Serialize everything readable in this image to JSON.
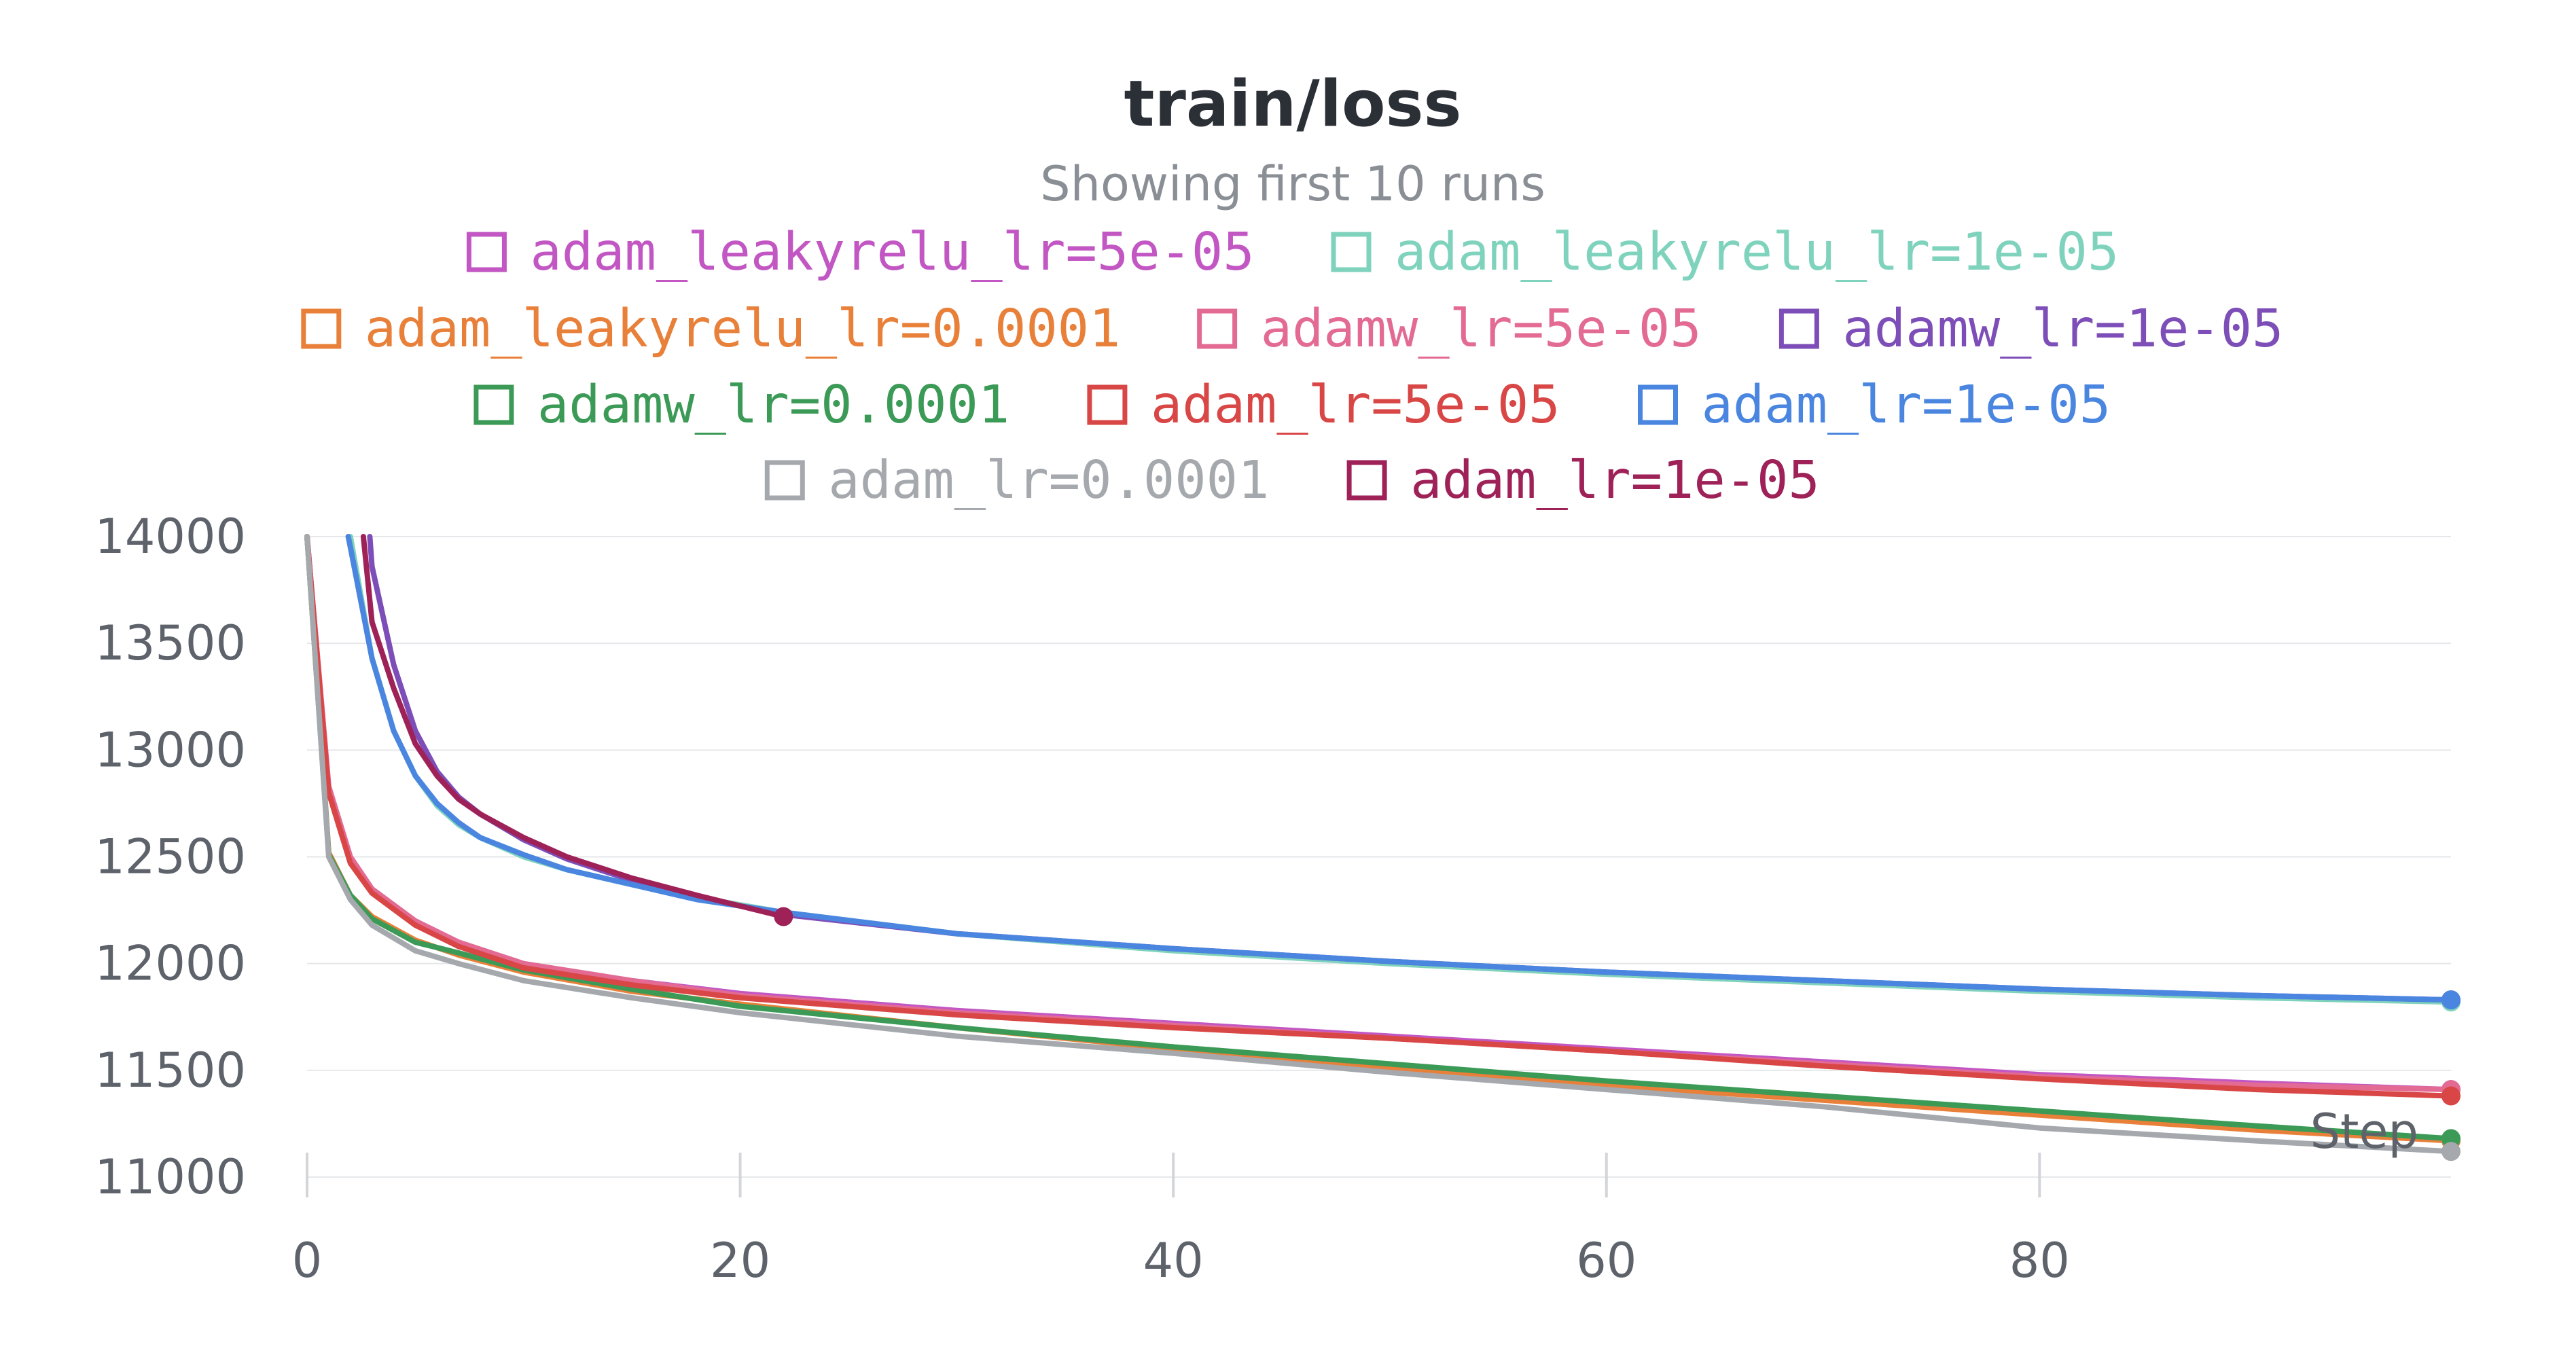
{
  "chart_data": {
    "type": "line",
    "title": "train/loss",
    "subtitle": "Showing first 10 runs",
    "xlabel": "Step",
    "ylabel": "",
    "xlim": [
      0,
      99
    ],
    "ylim": [
      11000,
      14000
    ],
    "x_ticks": [
      "0",
      "20",
      "40",
      "60",
      "80"
    ],
    "y_ticks": [
      "11000",
      "11500",
      "12000",
      "12500",
      "13000",
      "13500",
      "14000"
    ],
    "grid": true,
    "legend_position": "top",
    "series": [
      {
        "name": "adam_leakyrelu_lr=5e-05",
        "color": "#c257c4",
        "x": [
          0,
          1,
          2,
          3,
          5,
          7,
          10,
          15,
          20,
          30,
          40,
          50,
          60,
          70,
          80,
          90,
          99
        ],
        "y": [
          14000,
          12820,
          12490,
          12340,
          12190,
          12090,
          11990,
          11920,
          11860,
          11780,
          11720,
          11660,
          11600,
          11540,
          11480,
          11440,
          11410
        ]
      },
      {
        "name": "adam_leakyrelu_lr=1e-05",
        "color": "#7fd3bd",
        "x": [
          2,
          3,
          4,
          5,
          6,
          7,
          8,
          10,
          12,
          15,
          18,
          22,
          30,
          40,
          50,
          60,
          70,
          80,
          90,
          99
        ],
        "y": [
          14000,
          13430,
          13090,
          12880,
          12740,
          12650,
          12590,
          12500,
          12440,
          12370,
          12310,
          12240,
          12140,
          12060,
          12000,
          11950,
          11910,
          11870,
          11840,
          11820
        ]
      },
      {
        "name": "adam_leakyrelu_lr=0.0001",
        "color": "#e8803a",
        "x": [
          0,
          1,
          2,
          3,
          5,
          7,
          10,
          15,
          20,
          30,
          40,
          50,
          60,
          70,
          80,
          90,
          99
        ],
        "y": [
          14000,
          12520,
          12320,
          12220,
          12110,
          12040,
          11960,
          11870,
          11810,
          11700,
          11600,
          11510,
          11430,
          11360,
          11290,
          11220,
          11170
        ]
      },
      {
        "name": "adamw_lr=5e-05",
        "color": "#e36b93",
        "x": [
          0,
          1,
          2,
          3,
          5,
          7,
          10,
          15,
          20,
          30,
          40,
          50,
          60,
          70,
          80,
          90,
          99
        ],
        "y": [
          14000,
          12830,
          12500,
          12350,
          12200,
          12100,
          12000,
          11920,
          11850,
          11770,
          11710,
          11650,
          11590,
          11530,
          11470,
          11430,
          11410
        ]
      },
      {
        "name": "adamw_lr=1e-05",
        "color": "#7d4eb8",
        "x": [
          2.9,
          3,
          4,
          5,
          6,
          7,
          8,
          10,
          12,
          15,
          18,
          22,
          30,
          40,
          50,
          60,
          70,
          80,
          90,
          99
        ],
        "y": [
          14000,
          13860,
          13400,
          13090,
          12900,
          12780,
          12700,
          12580,
          12490,
          12390,
          12310,
          12230,
          12140,
          12070,
          12010,
          11960,
          11920,
          11880,
          11850,
          11830
        ]
      },
      {
        "name": "adamw_lr=0.0001",
        "color": "#3c9a57",
        "x": [
          0,
          1,
          2,
          3,
          5,
          7,
          10,
          15,
          20,
          30,
          40,
          50,
          60,
          70,
          80,
          90,
          99
        ],
        "y": [
          14000,
          12510,
          12320,
          12210,
          12100,
          12050,
          11970,
          11880,
          11800,
          11700,
          11610,
          11530,
          11450,
          11380,
          11310,
          11240,
          11180
        ]
      },
      {
        "name": "adam_lr=5e-05",
        "color": "#d94646",
        "x": [
          0,
          1,
          2,
          3,
          5,
          7,
          10,
          15,
          20,
          30,
          40,
          50,
          60,
          70,
          80,
          90,
          99
        ],
        "y": [
          14000,
          12800,
          12470,
          12330,
          12180,
          12080,
          11980,
          11900,
          11840,
          11760,
          11700,
          11650,
          11590,
          11520,
          11460,
          11410,
          11380
        ]
      },
      {
        "name": "adam_lr=1e-05",
        "color": "#4a86e0",
        "x": [
          1.9,
          2,
          3,
          4,
          5,
          6,
          7,
          8,
          10,
          12,
          15,
          18,
          22,
          30,
          40,
          50,
          60,
          70,
          80,
          90,
          99
        ],
        "y": [
          14000,
          13950,
          13430,
          13090,
          12880,
          12750,
          12660,
          12590,
          12510,
          12440,
          12370,
          12300,
          12240,
          12140,
          12070,
          12010,
          11960,
          11920,
          11880,
          11850,
          11830
        ]
      },
      {
        "name": "adam_lr=0.0001",
        "color": "#a5a9ad",
        "x": [
          0,
          1,
          2,
          3,
          5,
          7,
          10,
          15,
          20,
          30,
          40,
          50,
          60,
          70,
          80,
          90,
          99
        ],
        "y": [
          14000,
          12500,
          12300,
          12180,
          12060,
          12000,
          11920,
          11840,
          11770,
          11660,
          11580,
          11490,
          11410,
          11330,
          11230,
          11170,
          11120
        ]
      },
      {
        "name": "adam_lr=1e-05",
        "color": "#9e2258",
        "x": [
          2.6,
          3,
          4,
          5,
          6,
          7,
          8,
          10,
          12,
          15,
          18,
          22
        ],
        "y": [
          14000,
          13600,
          13290,
          13030,
          12880,
          12770,
          12700,
          12590,
          12500,
          12400,
          12320,
          12220
        ]
      }
    ]
  }
}
